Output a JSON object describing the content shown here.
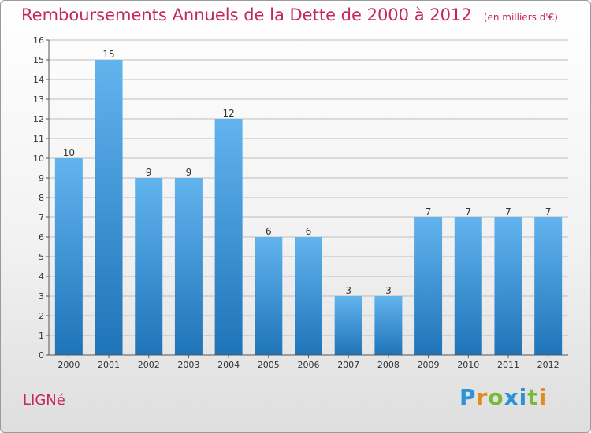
{
  "header": {
    "title": "Remboursements Annuels de la Dette de 2000 à 2012",
    "subtitle": "(en milliers d'€)"
  },
  "footer": {
    "commune": "LIGNé",
    "brand": "Proxiti"
  },
  "colors": {
    "title": "#c4275e",
    "bar_light": "#62b4ee",
    "bar_dark": "#1f74b8",
    "grid": "#bdbdbd"
  },
  "chart_data": {
    "type": "bar",
    "title": "Remboursements Annuels de la Dette de 2000 à 2012",
    "subtitle": "(en milliers d'€)",
    "xlabel": "",
    "ylabel": "",
    "categories": [
      "2000",
      "2001",
      "2002",
      "2003",
      "2004",
      "2005",
      "2006",
      "2007",
      "2008",
      "2009",
      "2010",
      "2011",
      "2012"
    ],
    "values": [
      10,
      15,
      9,
      9,
      12,
      6,
      6,
      3,
      3,
      7,
      7,
      7,
      7
    ],
    "data_labels": [
      "10",
      "15",
      "9",
      "9",
      "12",
      "6",
      "6",
      "3",
      "3",
      "7",
      "7",
      "7",
      "7"
    ],
    "yticks": [
      0,
      1,
      2,
      3,
      4,
      5,
      6,
      7,
      8,
      9,
      10,
      11,
      12,
      13,
      14,
      15,
      16
    ],
    "ylim": [
      0,
      16
    ],
    "grid": true,
    "legend": "none"
  }
}
